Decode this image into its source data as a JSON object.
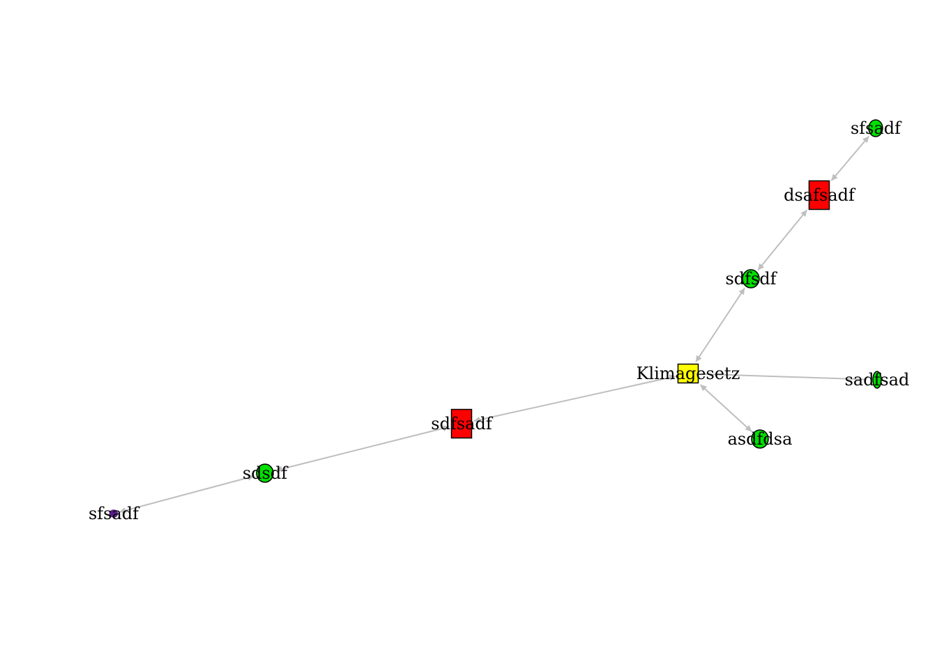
{
  "graph": {
    "nodes": [
      {
        "id": "n1",
        "label": "sfsadf",
        "shape": "circle",
        "color": "#00E000"
      },
      {
        "id": "n2",
        "label": "dsafsadf",
        "shape": "rect",
        "color": "#FF0000"
      },
      {
        "id": "n3",
        "label": "sdfsdf",
        "shape": "circle",
        "color": "#00E000"
      },
      {
        "id": "n4",
        "label": "Klimagesetz",
        "shape": "rect",
        "color": "#FFFF00"
      },
      {
        "id": "n5",
        "label": "sadfsad",
        "shape": "circle",
        "color": "#00E000"
      },
      {
        "id": "n6",
        "label": "asdfdsa",
        "shape": "circle",
        "color": "#00E000"
      },
      {
        "id": "n7",
        "label": "sdfsadf",
        "shape": "rect",
        "color": "#FF0000"
      },
      {
        "id": "n8",
        "label": "sdsdf",
        "shape": "circle",
        "color": "#00E000"
      },
      {
        "id": "n9",
        "label": "sfsadf",
        "shape": "circle",
        "color": "#5B1F8C"
      }
    ],
    "edges": [
      {
        "from": "n1",
        "to": "n2",
        "arrows": "both"
      },
      {
        "from": "n2",
        "to": "n3",
        "arrows": "both"
      },
      {
        "from": "n3",
        "to": "n4",
        "arrows": "both"
      },
      {
        "from": "n4",
        "to": "n5",
        "arrows": "none"
      },
      {
        "from": "n4",
        "to": "n6",
        "arrows": "both"
      },
      {
        "from": "n4",
        "to": "n7",
        "arrows": "both"
      },
      {
        "from": "n7",
        "to": "n8",
        "arrows": "both"
      },
      {
        "from": "n8",
        "to": "n9",
        "arrows": "both"
      }
    ],
    "edge_color": "#BEBEBE"
  }
}
